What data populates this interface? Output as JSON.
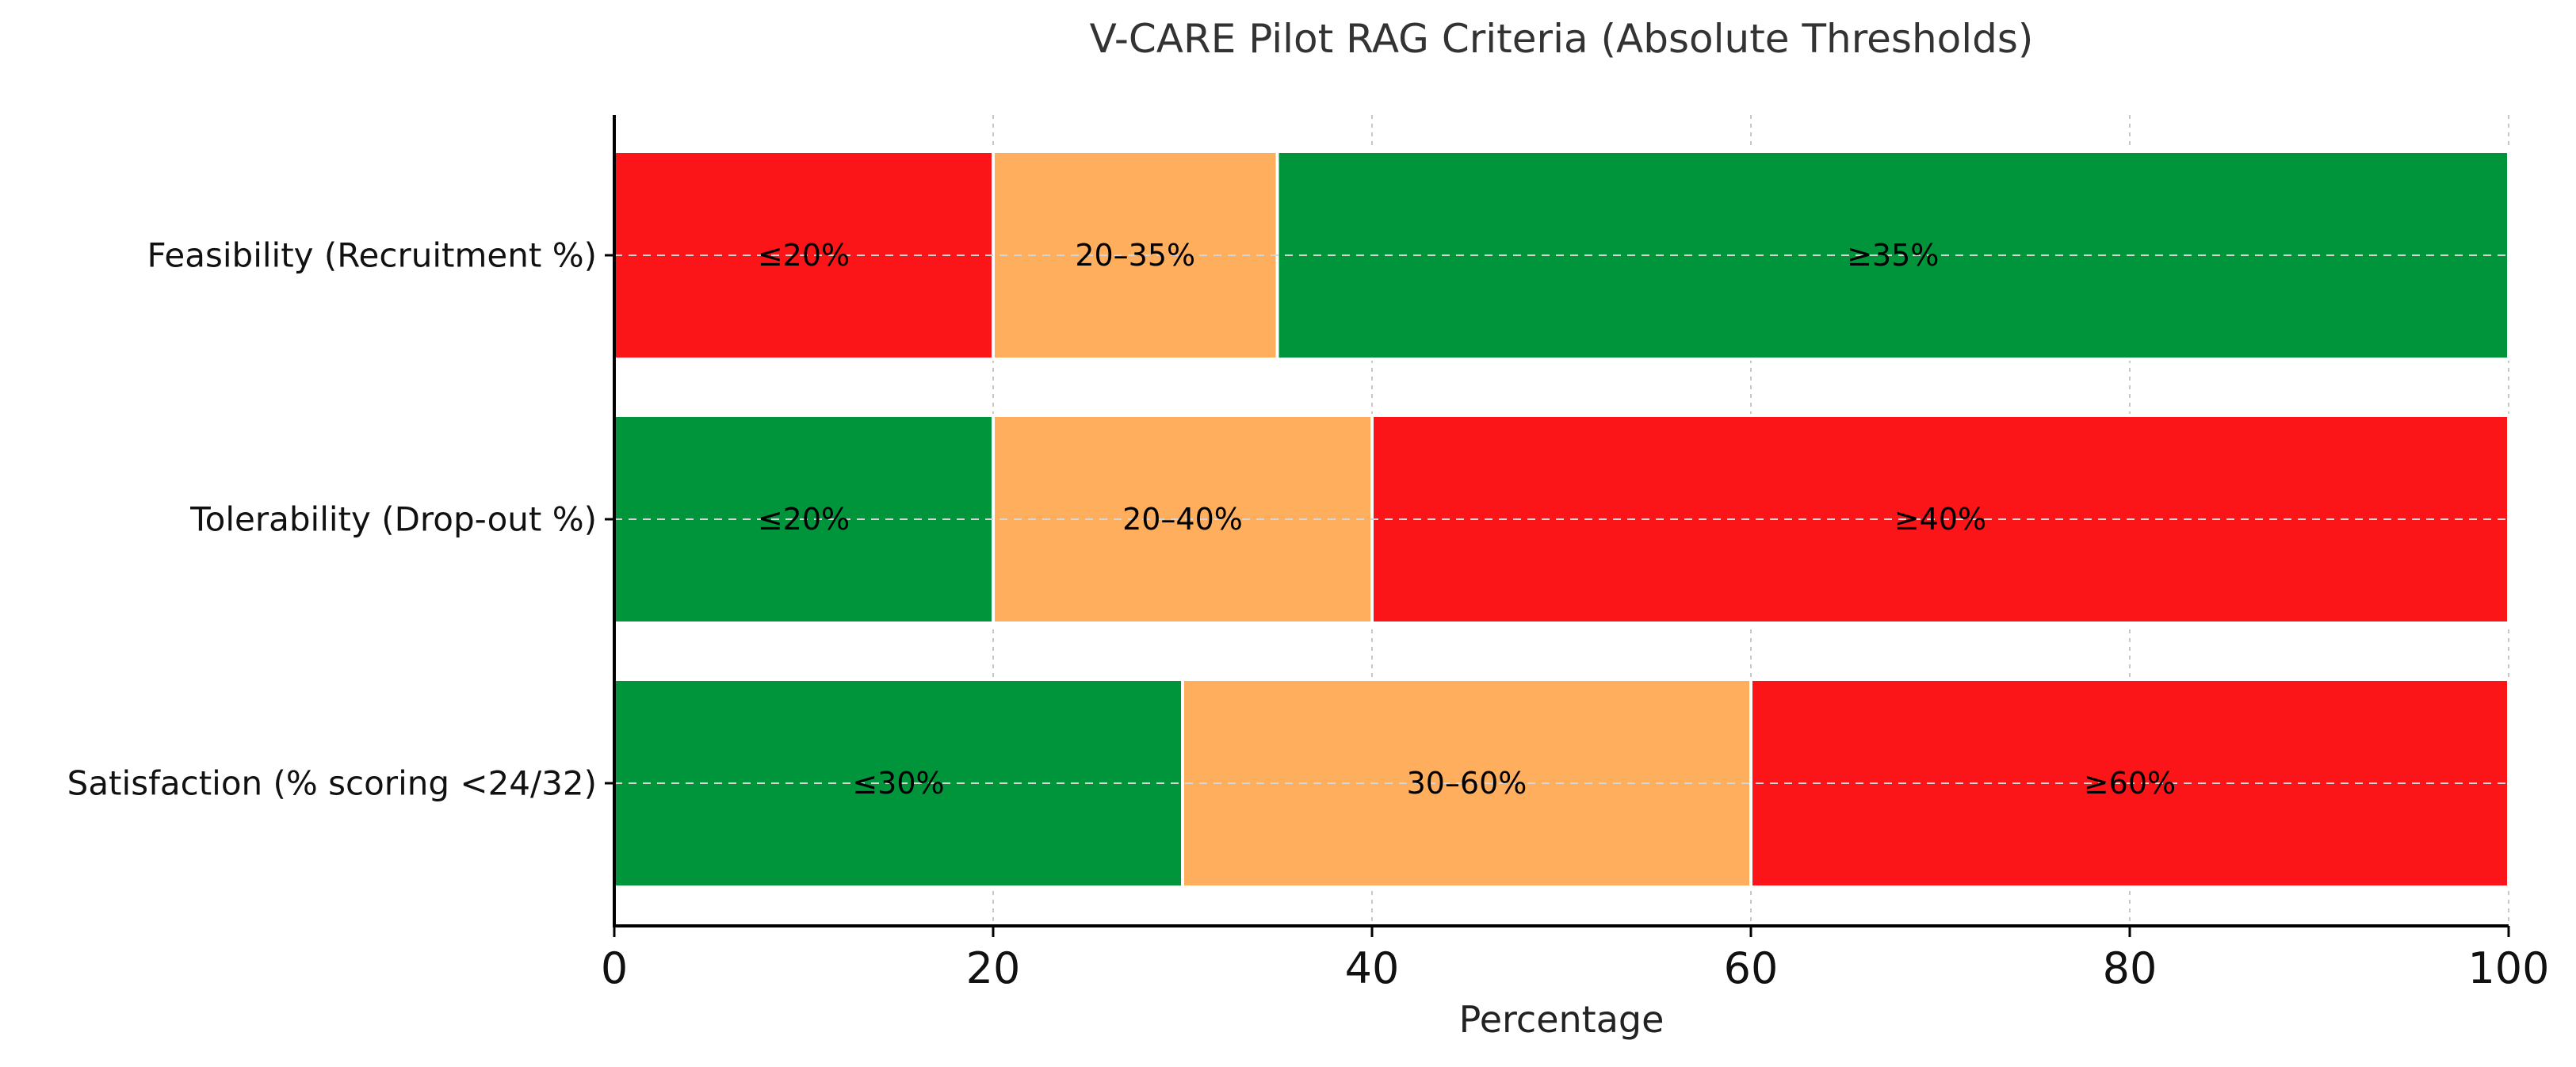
{
  "chart_data": {
    "type": "bar",
    "orientation": "horizontal",
    "stacked": true,
    "title": "V-CARE Pilot RAG Criteria (Absolute Thresholds)",
    "xlabel": "Percentage",
    "ylabel": "",
    "xlim": [
      0,
      100
    ],
    "xticks": [
      0,
      20,
      40,
      60,
      80,
      100
    ],
    "grid": true,
    "colors": {
      "red": "#fb1418",
      "amber": "#ffae5d",
      "green": "#00953a"
    },
    "categories": [
      {
        "label": "Feasibility (Recruitment %)",
        "segments": [
          {
            "start": 0,
            "end": 20,
            "color": "red",
            "label": "≤20%"
          },
          {
            "start": 20,
            "end": 35,
            "color": "amber",
            "label": "20–35%"
          },
          {
            "start": 35,
            "end": 100,
            "color": "green",
            "label": "≥35%"
          }
        ]
      },
      {
        "label": "Tolerability (Drop-out %)",
        "segments": [
          {
            "start": 0,
            "end": 20,
            "color": "green",
            "label": "≤20%"
          },
          {
            "start": 20,
            "end": 40,
            "color": "amber",
            "label": "20–40%"
          },
          {
            "start": 40,
            "end": 100,
            "color": "red",
            "label": "≥40%"
          }
        ]
      },
      {
        "label": "Satisfaction (% scoring <24/32)",
        "segments": [
          {
            "start": 0,
            "end": 30,
            "color": "green",
            "label": "≤30%"
          },
          {
            "start": 30,
            "end": 60,
            "color": "amber",
            "label": "30–60%"
          },
          {
            "start": 60,
            "end": 100,
            "color": "red",
            "label": "≥60%"
          }
        ]
      }
    ]
  }
}
